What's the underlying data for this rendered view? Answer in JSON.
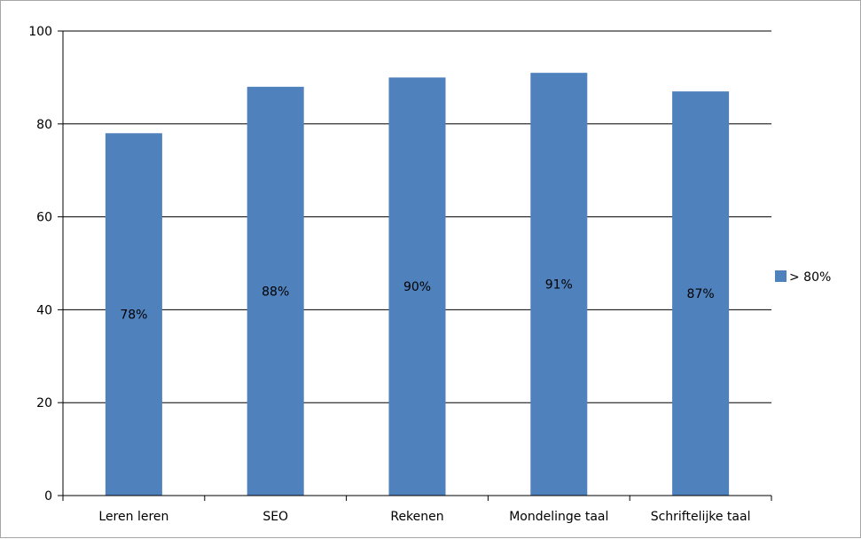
{
  "chart_data": {
    "type": "bar",
    "categories": [
      "Leren leren",
      "SEO",
      "Rekenen",
      "Mondelinge taal",
      "Schriftelijke taal"
    ],
    "series": [
      {
        "name": "> 80%",
        "values": [
          78,
          88,
          90,
          91,
          87
        ],
        "data_labels": [
          "78%",
          "88%",
          "90%",
          "91%",
          "87%"
        ],
        "color": "#4f81bd"
      }
    ],
    "ylim": [
      0,
      100
    ],
    "yticks": [
      0,
      20,
      40,
      60,
      80,
      100
    ],
    "grid": true,
    "legend_position": "right"
  }
}
